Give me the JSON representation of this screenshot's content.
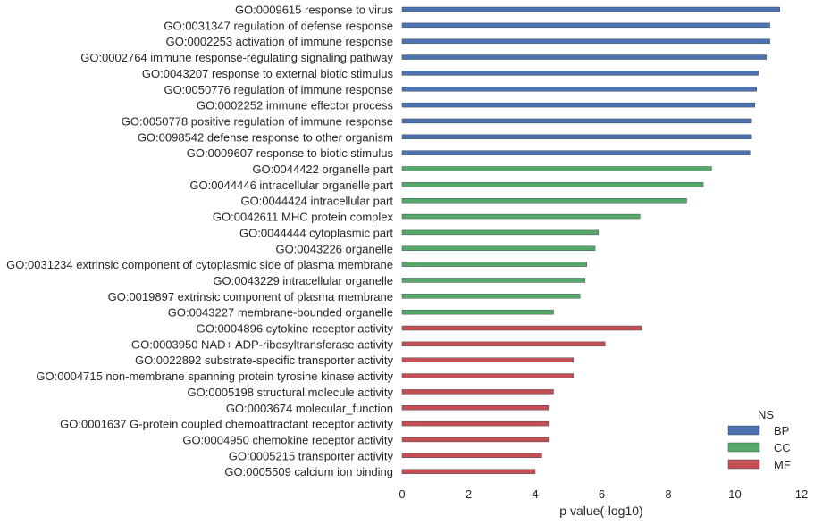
{
  "chart_data": {
    "type": "bar",
    "orientation": "horizontal",
    "xlabel": "p value(-log10)",
    "xlim": [
      0,
      12
    ],
    "xticks": [
      0,
      2,
      4,
      6,
      8,
      10,
      12
    ],
    "grid": false,
    "legend": {
      "title": "NS",
      "placement": "bottom-right",
      "entries": [
        {
          "name": "BP",
          "color": "#4c72b0"
        },
        {
          "name": "CC",
          "color": "#55a868"
        },
        {
          "name": "MF",
          "color": "#c44e52"
        }
      ]
    },
    "categories": [
      {
        "label": "GO:0009615 response to virus",
        "value": 11.35,
        "ns": "BP"
      },
      {
        "label": "GO:0031347 regulation of defense response",
        "value": 11.05,
        "ns": "BP"
      },
      {
        "label": "GO:0002253 activation of immune response",
        "value": 11.05,
        "ns": "BP"
      },
      {
        "label": "GO:0002764 immune response-regulating signaling pathway",
        "value": 10.95,
        "ns": "BP"
      },
      {
        "label": "GO:0043207 response to external biotic stimulus",
        "value": 10.7,
        "ns": "BP"
      },
      {
        "label": "GO:0050776 regulation of immune response",
        "value": 10.65,
        "ns": "BP"
      },
      {
        "label": "GO:0002252 immune effector process",
        "value": 10.6,
        "ns": "BP"
      },
      {
        "label": "GO:0050778 positive regulation of immune response",
        "value": 10.5,
        "ns": "BP"
      },
      {
        "label": "GO:0098542 defense response to other organism",
        "value": 10.5,
        "ns": "BP"
      },
      {
        "label": "GO:0009607 response to biotic stimulus",
        "value": 10.45,
        "ns": "BP"
      },
      {
        "label": "GO:0044422 organelle part",
        "value": 9.3,
        "ns": "CC"
      },
      {
        "label": "GO:0044446 intracellular organelle part",
        "value": 9.05,
        "ns": "CC"
      },
      {
        "label": "GO:0044424 intracellular part",
        "value": 8.55,
        "ns": "CC"
      },
      {
        "label": "GO:0042611 MHC protein complex",
        "value": 7.15,
        "ns": "CC"
      },
      {
        "label": "GO:0044444 cytoplasmic part",
        "value": 5.9,
        "ns": "CC"
      },
      {
        "label": "GO:0043226 organelle",
        "value": 5.8,
        "ns": "CC"
      },
      {
        "label": "GO:0031234 extrinsic component of cytoplasmic side of plasma membrane",
        "value": 5.55,
        "ns": "CC"
      },
      {
        "label": "GO:0043229 intracellular organelle",
        "value": 5.5,
        "ns": "CC"
      },
      {
        "label": "GO:0019897 extrinsic component of plasma membrane",
        "value": 5.35,
        "ns": "CC"
      },
      {
        "label": "GO:0043227 membrane-bounded organelle",
        "value": 4.55,
        "ns": "CC"
      },
      {
        "label": "GO:0004896 cytokine receptor activity",
        "value": 7.2,
        "ns": "MF"
      },
      {
        "label": "GO:0003950 NAD+ ADP-ribosyltransferase activity",
        "value": 6.1,
        "ns": "MF"
      },
      {
        "label": "GO:0022892 substrate-specific transporter activity",
        "value": 5.15,
        "ns": "MF"
      },
      {
        "label": "GO:0004715 non-membrane spanning protein tyrosine kinase activity",
        "value": 5.15,
        "ns": "MF"
      },
      {
        "label": "GO:0005198 structural molecule activity",
        "value": 4.55,
        "ns": "MF"
      },
      {
        "label": "GO:0003674 molecular_function",
        "value": 4.4,
        "ns": "MF"
      },
      {
        "label": "GO:0001637 G-protein coupled chemoattractant receptor activity",
        "value": 4.4,
        "ns": "MF"
      },
      {
        "label": "GO:0004950 chemokine receptor activity",
        "value": 4.4,
        "ns": "MF"
      },
      {
        "label": "GO:0005215 transporter activity",
        "value": 4.2,
        "ns": "MF"
      },
      {
        "label": "GO:0005509 calcium ion binding",
        "value": 4.0,
        "ns": "MF"
      }
    ]
  }
}
